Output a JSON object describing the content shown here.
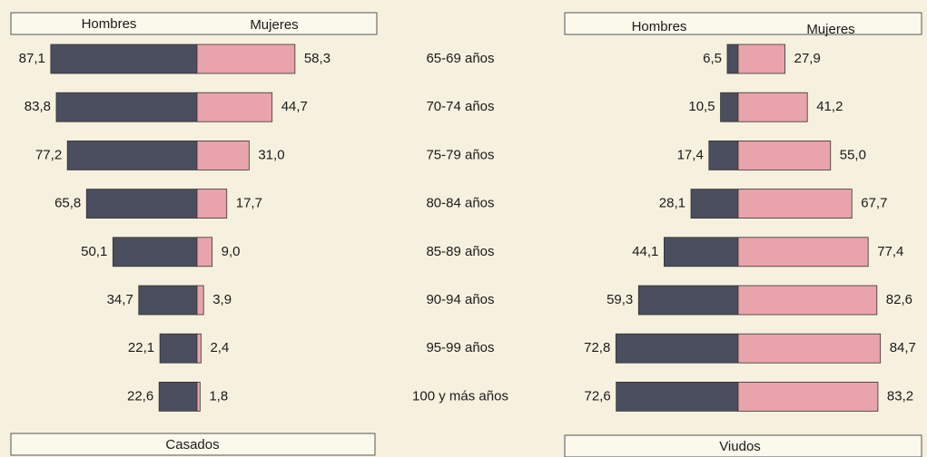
{
  "chart_data": [
    {
      "type": "butterfly",
      "title": "Casados",
      "categories": [
        "65-69 años",
        "70-74 años",
        "75-79 años",
        "80-84 años",
        "85-89 años",
        "90-94 años",
        "95-99 años",
        "100 y más años"
      ],
      "series": [
        {
          "name": "Hombres",
          "color": "#4b4e5e",
          "values": [
            87.1,
            83.8,
            77.2,
            65.8,
            50.1,
            34.7,
            22.1,
            22.6
          ],
          "value_labels": [
            "87,1",
            "83,8",
            "77,2",
            "65,8",
            "50,1",
            "34,7",
            "22,1",
            "22,6"
          ]
        },
        {
          "name": "Mujeres",
          "color": "#e9a3ab",
          "values": [
            58.3,
            44.7,
            31.0,
            17.7,
            9.0,
            3.9,
            2.4,
            1.8
          ],
          "value_labels": [
            "58,3",
            "44,7",
            "31,0",
            "17,7",
            "9,0",
            "3,9",
            "2,4",
            "1,8"
          ]
        }
      ]
    },
    {
      "type": "butterfly",
      "title": "Viudos",
      "series": [
        {
          "name": "Hombres",
          "color": "#4b4e5e",
          "values": [
            6.5,
            10.5,
            17.4,
            28.1,
            44.1,
            59.3,
            72.8,
            72.6
          ],
          "value_labels": [
            "6,5",
            "10,5",
            "17,4",
            "28,1",
            "44,1",
            "59,3",
            "72,8",
            "72,6"
          ]
        },
        {
          "name": "Mujeres",
          "color": "#e9a3ab",
          "values": [
            27.9,
            41.2,
            55.0,
            67.7,
            77.4,
            82.6,
            84.7,
            83.2
          ],
          "value_labels": [
            "27,9",
            "41,2",
            "55,0",
            "67,7",
            "77,4",
            "82,6",
            "84,7",
            "83,2"
          ]
        }
      ]
    }
  ]
}
